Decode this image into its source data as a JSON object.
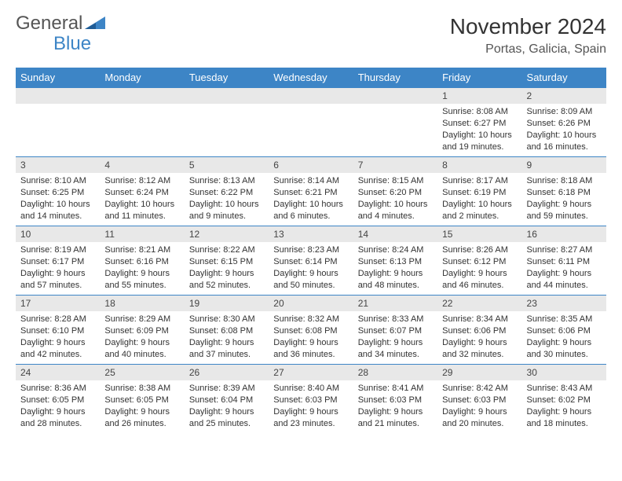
{
  "brand": {
    "part1": "General",
    "part2": "Blue"
  },
  "title": "November 2024",
  "location": "Portas, Galicia, Spain",
  "colors": {
    "header_bg": "#3d85c6",
    "header_text": "#ffffff",
    "daynum_bg": "#e8e8e8",
    "border": "#3d85c6",
    "text": "#333333",
    "background": "#ffffff"
  },
  "day_headers": [
    "Sunday",
    "Monday",
    "Tuesday",
    "Wednesday",
    "Thursday",
    "Friday",
    "Saturday"
  ],
  "weeks": [
    [
      null,
      null,
      null,
      null,
      null,
      {
        "n": "1",
        "sr": "8:08 AM",
        "ss": "6:27 PM",
        "dl": "10 hours and 19 minutes."
      },
      {
        "n": "2",
        "sr": "8:09 AM",
        "ss": "6:26 PM",
        "dl": "10 hours and 16 minutes."
      }
    ],
    [
      {
        "n": "3",
        "sr": "8:10 AM",
        "ss": "6:25 PM",
        "dl": "10 hours and 14 minutes."
      },
      {
        "n": "4",
        "sr": "8:12 AM",
        "ss": "6:24 PM",
        "dl": "10 hours and 11 minutes."
      },
      {
        "n": "5",
        "sr": "8:13 AM",
        "ss": "6:22 PM",
        "dl": "10 hours and 9 minutes."
      },
      {
        "n": "6",
        "sr": "8:14 AM",
        "ss": "6:21 PM",
        "dl": "10 hours and 6 minutes."
      },
      {
        "n": "7",
        "sr": "8:15 AM",
        "ss": "6:20 PM",
        "dl": "10 hours and 4 minutes."
      },
      {
        "n": "8",
        "sr": "8:17 AM",
        "ss": "6:19 PM",
        "dl": "10 hours and 2 minutes."
      },
      {
        "n": "9",
        "sr": "8:18 AM",
        "ss": "6:18 PM",
        "dl": "9 hours and 59 minutes."
      }
    ],
    [
      {
        "n": "10",
        "sr": "8:19 AM",
        "ss": "6:17 PM",
        "dl": "9 hours and 57 minutes."
      },
      {
        "n": "11",
        "sr": "8:21 AM",
        "ss": "6:16 PM",
        "dl": "9 hours and 55 minutes."
      },
      {
        "n": "12",
        "sr": "8:22 AM",
        "ss": "6:15 PM",
        "dl": "9 hours and 52 minutes."
      },
      {
        "n": "13",
        "sr": "8:23 AM",
        "ss": "6:14 PM",
        "dl": "9 hours and 50 minutes."
      },
      {
        "n": "14",
        "sr": "8:24 AM",
        "ss": "6:13 PM",
        "dl": "9 hours and 48 minutes."
      },
      {
        "n": "15",
        "sr": "8:26 AM",
        "ss": "6:12 PM",
        "dl": "9 hours and 46 minutes."
      },
      {
        "n": "16",
        "sr": "8:27 AM",
        "ss": "6:11 PM",
        "dl": "9 hours and 44 minutes."
      }
    ],
    [
      {
        "n": "17",
        "sr": "8:28 AM",
        "ss": "6:10 PM",
        "dl": "9 hours and 42 minutes."
      },
      {
        "n": "18",
        "sr": "8:29 AM",
        "ss": "6:09 PM",
        "dl": "9 hours and 40 minutes."
      },
      {
        "n": "19",
        "sr": "8:30 AM",
        "ss": "6:08 PM",
        "dl": "9 hours and 37 minutes."
      },
      {
        "n": "20",
        "sr": "8:32 AM",
        "ss": "6:08 PM",
        "dl": "9 hours and 36 minutes."
      },
      {
        "n": "21",
        "sr": "8:33 AM",
        "ss": "6:07 PM",
        "dl": "9 hours and 34 minutes."
      },
      {
        "n": "22",
        "sr": "8:34 AM",
        "ss": "6:06 PM",
        "dl": "9 hours and 32 minutes."
      },
      {
        "n": "23",
        "sr": "8:35 AM",
        "ss": "6:06 PM",
        "dl": "9 hours and 30 minutes."
      }
    ],
    [
      {
        "n": "24",
        "sr": "8:36 AM",
        "ss": "6:05 PM",
        "dl": "9 hours and 28 minutes."
      },
      {
        "n": "25",
        "sr": "8:38 AM",
        "ss": "6:05 PM",
        "dl": "9 hours and 26 minutes."
      },
      {
        "n": "26",
        "sr": "8:39 AM",
        "ss": "6:04 PM",
        "dl": "9 hours and 25 minutes."
      },
      {
        "n": "27",
        "sr": "8:40 AM",
        "ss": "6:03 PM",
        "dl": "9 hours and 23 minutes."
      },
      {
        "n": "28",
        "sr": "8:41 AM",
        "ss": "6:03 PM",
        "dl": "9 hours and 21 minutes."
      },
      {
        "n": "29",
        "sr": "8:42 AM",
        "ss": "6:03 PM",
        "dl": "9 hours and 20 minutes."
      },
      {
        "n": "30",
        "sr": "8:43 AM",
        "ss": "6:02 PM",
        "dl": "9 hours and 18 minutes."
      }
    ]
  ],
  "labels": {
    "sunrise": "Sunrise:",
    "sunset": "Sunset:",
    "daylight": "Daylight:"
  }
}
